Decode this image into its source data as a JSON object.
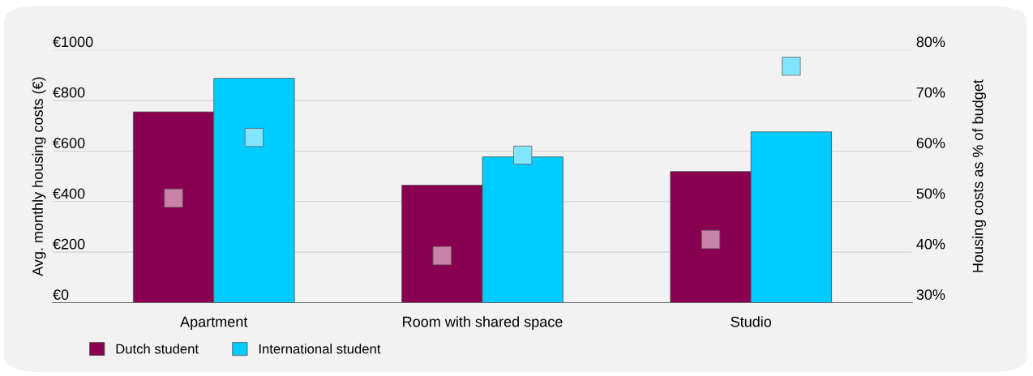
{
  "chart_data": {
    "type": "bar",
    "ylabel": "Avg. monthly housing costs (€)",
    "y2label": "Housing costs as % of budget",
    "categories": [
      "Apartment",
      "Room with shared space",
      "Studio"
    ],
    "series": [
      {
        "name": "Dutch student",
        "color": "#8a0050",
        "values": [
          755,
          465,
          519
        ]
      },
      {
        "name": "International student",
        "color": "#00ccff",
        "values": [
          888,
          577,
          676
        ]
      },
      {
        "type": "scatter",
        "axis": "y2",
        "color": "#c982a8",
        "x": [
          "Apartment",
          "Room with shared space",
          "Studio"
        ],
        "values": [
          50.7,
          39.3,
          42.5
        ]
      },
      {
        "type": "scatter",
        "axis": "y2",
        "color": "#80e5ff",
        "x": [
          "Apartment",
          "Room with shared space",
          "Studio"
        ],
        "values": [
          62.7,
          59.2,
          76.8
        ]
      }
    ],
    "ylim": [
      0,
      1000
    ],
    "yticks": [
      {
        "value": 0,
        "label": "€0"
      },
      {
        "value": 200,
        "label": "€200"
      },
      {
        "value": 400,
        "label": "€400"
      },
      {
        "value": 600,
        "label": "€600"
      },
      {
        "value": 800,
        "label": "€800"
      },
      {
        "value": 1000,
        "label": "€1000"
      }
    ],
    "y2lim": [
      30,
      80
    ],
    "y2ticks": [
      {
        "value": 30,
        "label": "30%"
      },
      {
        "value": 40,
        "label": "40%"
      },
      {
        "value": 50,
        "label": "50%"
      },
      {
        "value": 60,
        "label": "60%"
      },
      {
        "value": 70,
        "label": "70%"
      },
      {
        "value": 80,
        "label": "80%"
      }
    ],
    "grid": "y",
    "legend": "bottom left",
    "marker": "square"
  }
}
